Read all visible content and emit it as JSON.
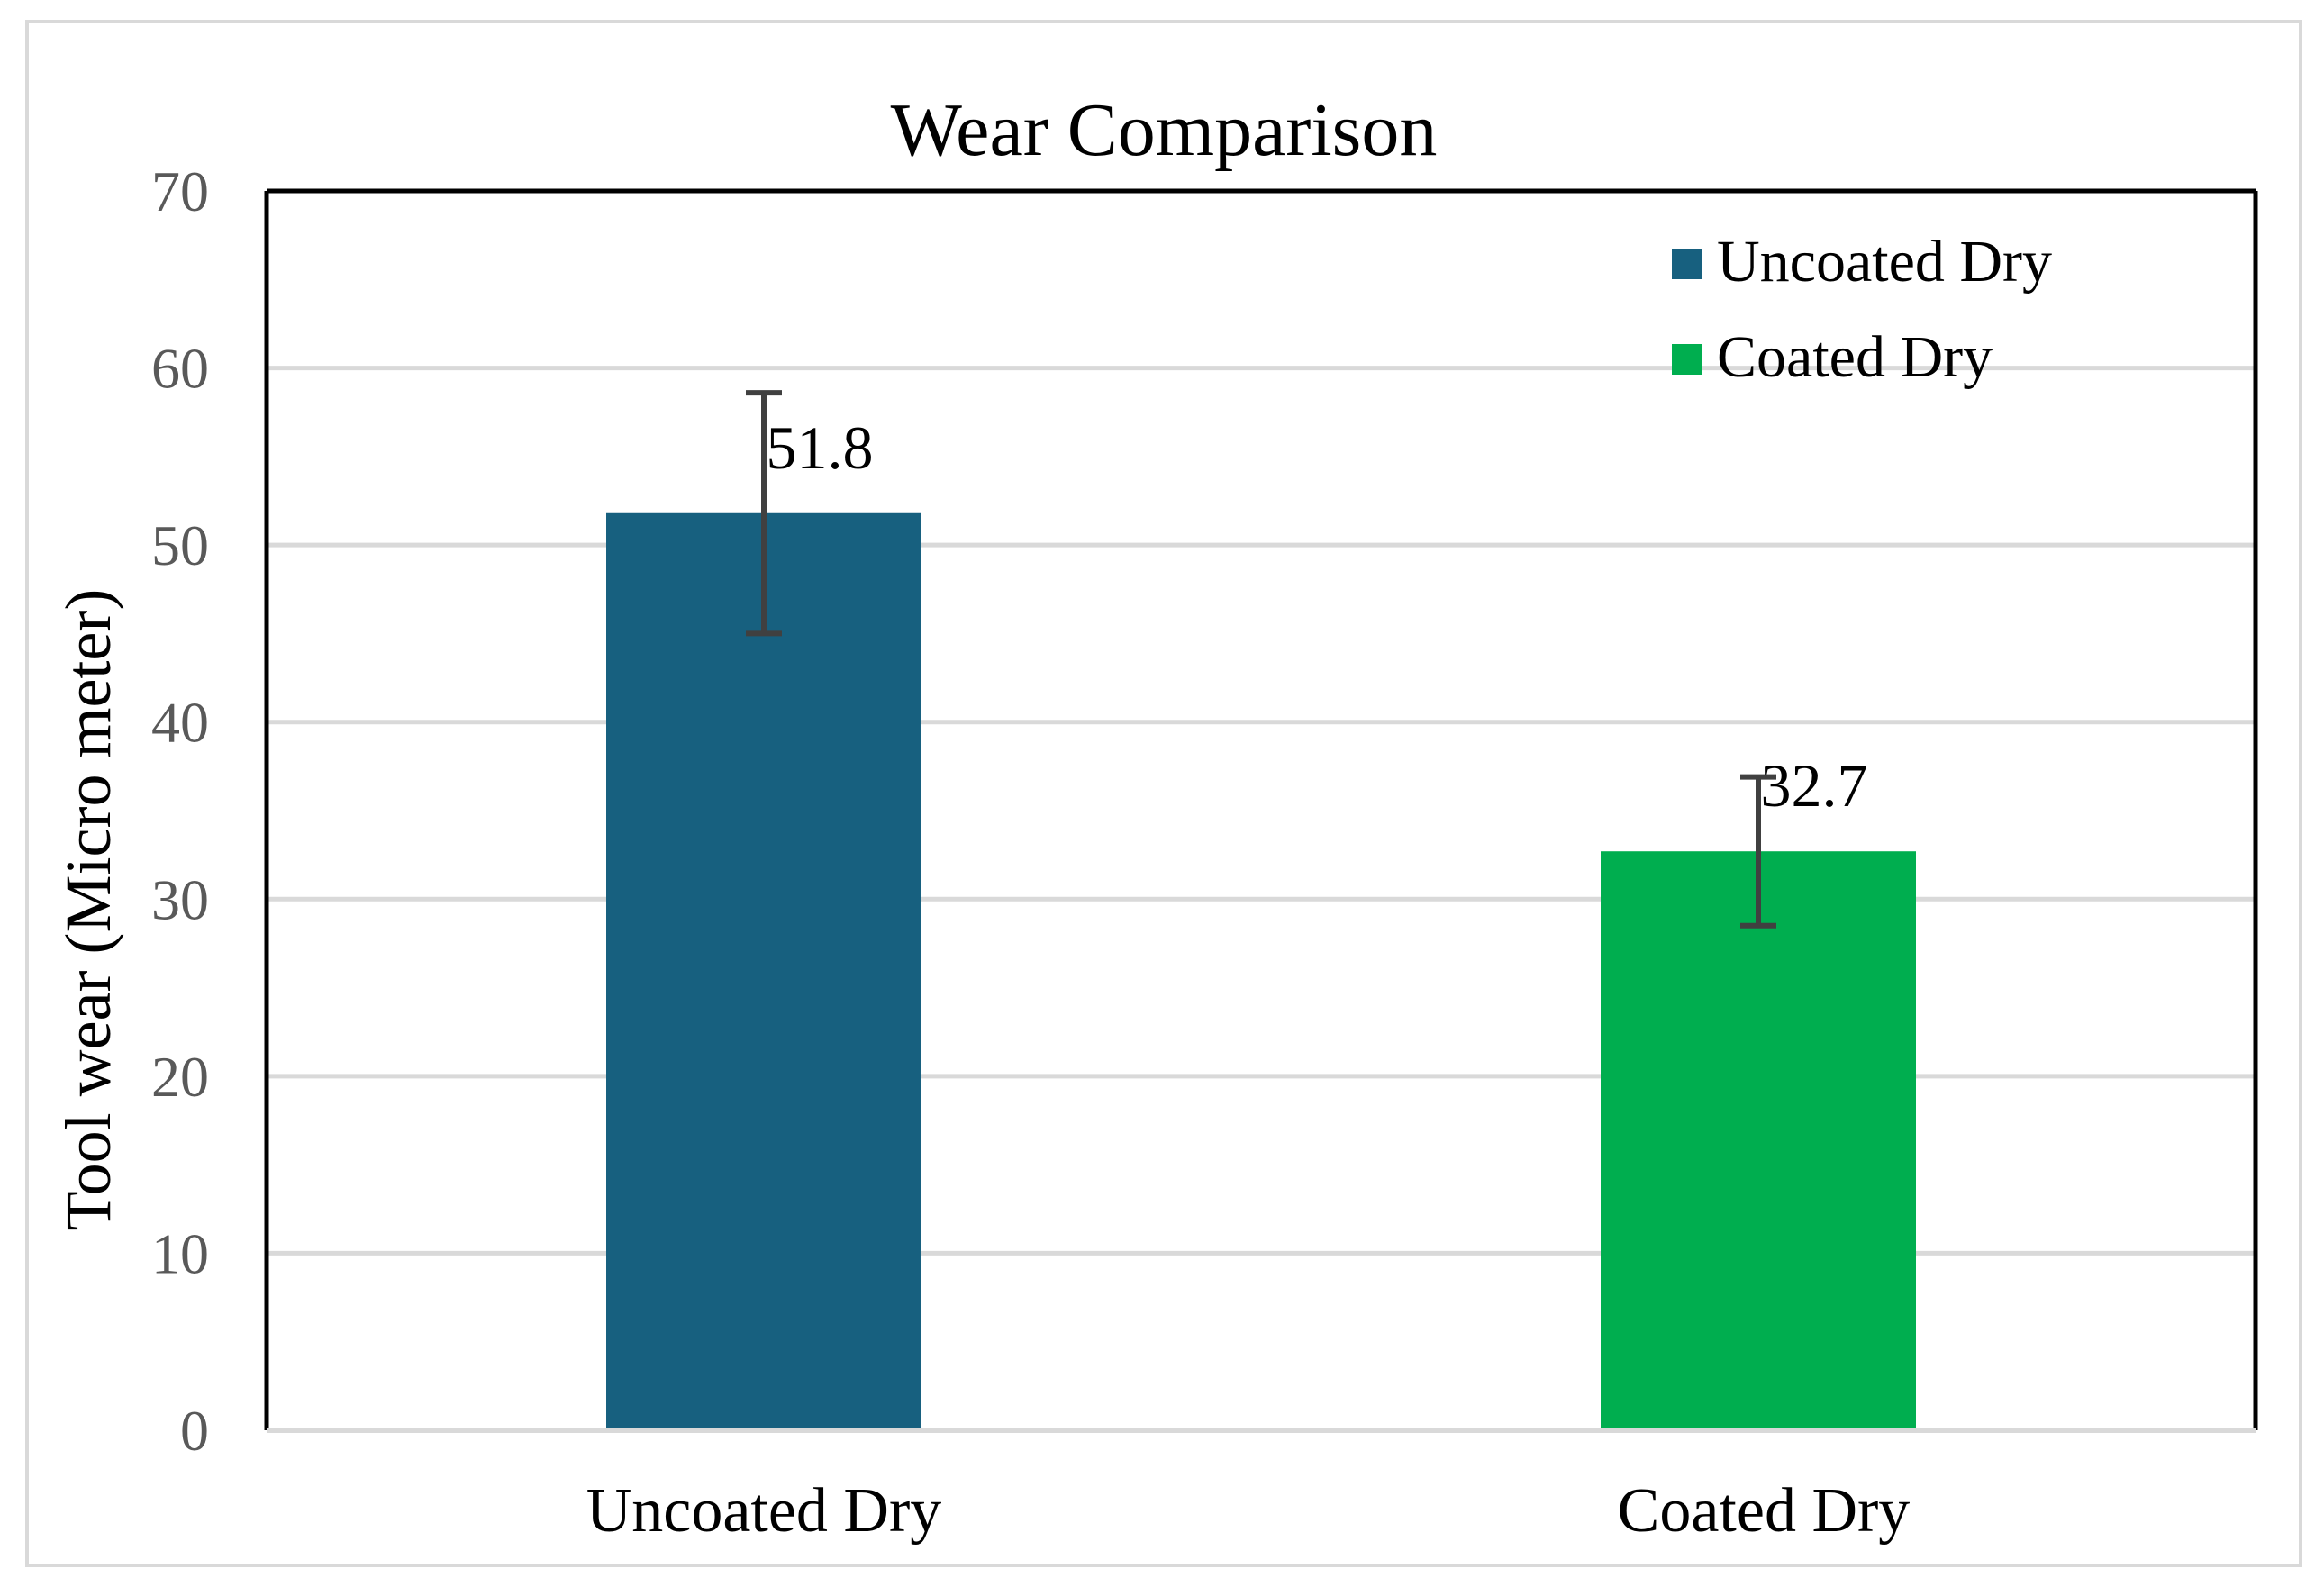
{
  "chart_data": {
    "type": "bar",
    "title": "Wear Comparison",
    "xlabel": "",
    "ylabel": "Tool wear (Micro meter)",
    "ylim": [
      0,
      70
    ],
    "yticks": [
      0,
      10,
      20,
      30,
      40,
      50,
      60,
      70
    ],
    "grid": true,
    "legend_position": "top-right",
    "categories": [
      "Uncoated Dry",
      "Coated Dry"
    ],
    "series": [
      {
        "name": "Uncoated Dry",
        "color": "#17607f",
        "values": [
          51.8,
          null
        ],
        "error_low": [
          45.0,
          null
        ],
        "error_high": [
          58.6,
          null
        ],
        "labels": [
          "51.8",
          ""
        ]
      },
      {
        "name": "Coated Dry",
        "color": "#00ae4f",
        "values": [
          null,
          32.7
        ],
        "error_low": [
          null,
          28.5
        ],
        "error_high": [
          null,
          36.9
        ],
        "labels": [
          "",
          "32.7"
        ]
      }
    ]
  },
  "colors": {
    "grid": "#d9d9d9",
    "axis": "#000000",
    "tick_label": "#595959",
    "error_bar": "#404040",
    "frame": "#d9d9d9"
  }
}
